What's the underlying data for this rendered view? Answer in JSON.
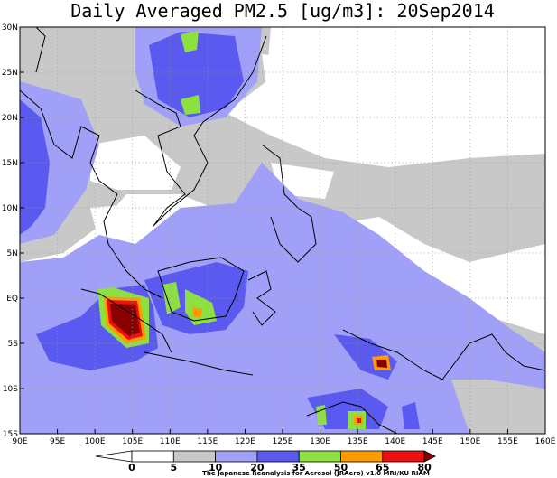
{
  "title": "Daily Averaged PM2.5 [ug/m3]: 20Sep2014",
  "map": {
    "x_labels": [
      "90E",
      "95E",
      "100E",
      "105E",
      "110E",
      "115E",
      "120E",
      "125E",
      "130E",
      "135E",
      "140E",
      "145E",
      "150E",
      "155E",
      "160E"
    ],
    "y_labels": [
      "30N",
      "25N",
      "20N",
      "15N",
      "10N",
      "5N",
      "EQ",
      "5S",
      "10S",
      "15S"
    ]
  },
  "colorbar": {
    "labels": [
      0,
      5,
      10,
      20,
      35,
      50,
      65,
      80
    ],
    "colors": [
      "#ffffff",
      "#ffffff",
      "#c8c8c8",
      "#a0a0f8",
      "#5a5af0",
      "#8ce040",
      "#ff9a00",
      "#ee1010",
      "#8a0000"
    ]
  },
  "credit": "The Japanese Reanalysis for Aerosol (JRAero) v1.0 MRI/KU RIAM"
}
